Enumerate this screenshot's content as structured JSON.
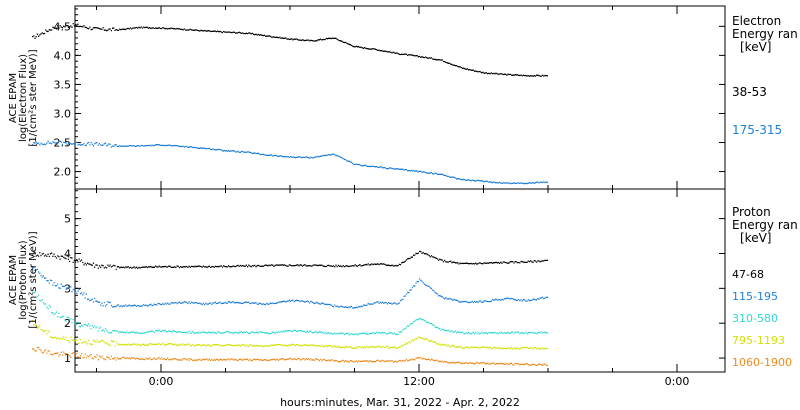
{
  "figure": {
    "xlabel": "hours:minutes, Mar. 31, 2022 - Apr.  2, 2022",
    "xticks": [
      "0:00",
      "12:00",
      "0:00"
    ]
  },
  "chart_data": [
    {
      "type": "line",
      "panel": "top",
      "ylabel_lines": [
        "ACE EPAM",
        "log(Electron Flux)",
        "[1/(cm²s ster MeV)]"
      ],
      "ylim": [
        1.7,
        4.85
      ],
      "yticks": [
        "2.0",
        "2.5",
        "3.0",
        "3.5",
        "4.0",
        "4.5"
      ],
      "legend_title": [
        "Electron",
        "Energy ran",
        "[keV]"
      ],
      "x": [
        -6,
        -5,
        -4,
        -3,
        -2,
        -1,
        0,
        1,
        2,
        3,
        4,
        5,
        6,
        7,
        8,
        9,
        10,
        11,
        12,
        13,
        14,
        15,
        16,
        17,
        18
      ],
      "series": [
        {
          "name": "38-53",
          "color": "#000000",
          "values": [
            4.3,
            4.48,
            4.52,
            4.45,
            4.44,
            4.48,
            4.47,
            4.45,
            4.42,
            4.4,
            4.38,
            4.33,
            4.28,
            4.25,
            4.3,
            4.15,
            4.1,
            4.03,
            3.98,
            3.92,
            3.78,
            3.7,
            3.67,
            3.65,
            3.65
          ]
        },
        {
          "name": "175-315",
          "color": "#1f7fd6",
          "values": [
            2.48,
            2.5,
            2.48,
            2.47,
            2.44,
            2.44,
            2.46,
            2.43,
            2.4,
            2.36,
            2.33,
            2.28,
            2.25,
            2.24,
            2.3,
            2.12,
            2.08,
            2.04,
            2.0,
            1.95,
            1.86,
            1.83,
            1.8,
            1.8,
            1.82
          ]
        }
      ]
    },
    {
      "type": "line",
      "panel": "bottom",
      "ylabel_lines": [
        "ACE EPAM",
        "log(Proton Flux)",
        "[1/(cm²s ster MeV)]"
      ],
      "ylim": [
        0.6,
        5.85
      ],
      "yticks": [
        "1",
        "2",
        "3",
        "4",
        "5"
      ],
      "legend_title": [
        "Proton",
        "Energy ran",
        "[keV]"
      ],
      "x": [
        -6,
        -5,
        -4,
        -3,
        -2,
        -1,
        0,
        1,
        2,
        3,
        4,
        5,
        6,
        7,
        8,
        9,
        10,
        11,
        12,
        13,
        14,
        15,
        16,
        17,
        18
      ],
      "series": [
        {
          "name": "47-68",
          "color": "#000000",
          "values": [
            4.0,
            3.95,
            3.8,
            3.65,
            3.6,
            3.6,
            3.62,
            3.62,
            3.62,
            3.63,
            3.64,
            3.65,
            3.66,
            3.66,
            3.64,
            3.65,
            3.7,
            3.65,
            4.05,
            3.8,
            3.7,
            3.72,
            3.74,
            3.76,
            3.8
          ]
        },
        {
          "name": "115-195",
          "color": "#1f7fd6",
          "values": [
            3.6,
            3.1,
            2.95,
            2.6,
            2.5,
            2.5,
            2.55,
            2.6,
            2.55,
            2.6,
            2.58,
            2.55,
            2.65,
            2.6,
            2.5,
            2.45,
            2.6,
            2.55,
            3.25,
            2.75,
            2.6,
            2.62,
            2.7,
            2.65,
            2.75
          ]
        },
        {
          "name": "310-580",
          "color": "#2ed8d0",
          "values": [
            2.9,
            2.3,
            2.0,
            1.85,
            1.75,
            1.72,
            1.78,
            1.75,
            1.72,
            1.74,
            1.73,
            1.72,
            1.78,
            1.75,
            1.7,
            1.68,
            1.72,
            1.7,
            2.15,
            1.82,
            1.72,
            1.72,
            1.72,
            1.72,
            1.73
          ]
        },
        {
          "name": "795-1193",
          "color": "#d2e000",
          "values": [
            2.0,
            1.6,
            1.5,
            1.45,
            1.4,
            1.38,
            1.4,
            1.38,
            1.36,
            1.37,
            1.36,
            1.35,
            1.38,
            1.36,
            1.33,
            1.3,
            1.33,
            1.3,
            1.6,
            1.38,
            1.3,
            1.3,
            1.28,
            1.28,
            1.28
          ]
        },
        {
          "name": "1060-1900",
          "color": "#ec8a1c",
          "values": [
            1.3,
            1.12,
            1.08,
            1.02,
            1.0,
            0.98,
            0.98,
            0.96,
            0.95,
            0.96,
            0.95,
            0.94,
            0.98,
            0.96,
            0.92,
            0.9,
            0.92,
            0.9,
            1.0,
            0.9,
            0.86,
            0.85,
            0.83,
            0.82,
            0.8
          ]
        }
      ]
    }
  ]
}
